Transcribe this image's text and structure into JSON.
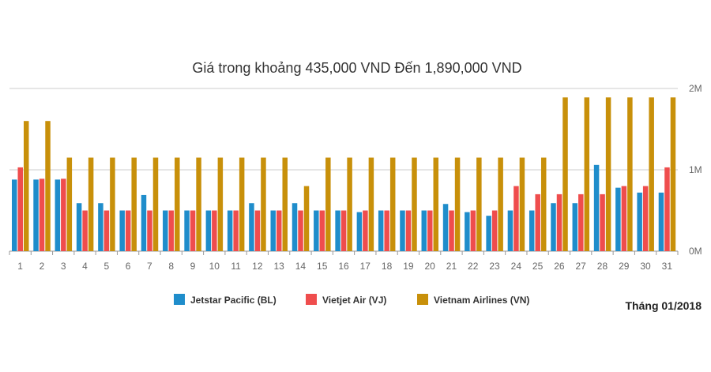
{
  "chart_data": {
    "type": "bar",
    "title": "Giá trong khoảng 435,000 VND Đến 1,890,000 VND",
    "categories": [
      "1",
      "2",
      "3",
      "4",
      "5",
      "6",
      "7",
      "8",
      "9",
      "10",
      "11",
      "12",
      "13",
      "14",
      "15",
      "16",
      "17",
      "18",
      "19",
      "20",
      "21",
      "22",
      "23",
      "24",
      "25",
      "26",
      "27",
      "28",
      "29",
      "30",
      "31"
    ],
    "series": [
      {
        "name": "Jetstar Pacific (BL)",
        "color": "#1f8dcb",
        "values": [
          880000,
          880000,
          880000,
          590000,
          590000,
          500000,
          690000,
          500000,
          500000,
          500000,
          500000,
          590000,
          500000,
          590000,
          500000,
          500000,
          480000,
          500000,
          500000,
          500000,
          580000,
          480000,
          435000,
          500000,
          500000,
          590000,
          590000,
          1060000,
          780000,
          720000,
          720000
        ]
      },
      {
        "name": "Vietjet Air (VJ)",
        "color": "#ef4d4d",
        "values": [
          1030000,
          890000,
          890000,
          500000,
          500000,
          500000,
          500000,
          500000,
          500000,
          500000,
          500000,
          500000,
          500000,
          500000,
          500000,
          500000,
          500000,
          500000,
          500000,
          500000,
          500000,
          500000,
          500000,
          800000,
          700000,
          700000,
          700000,
          700000,
          800000,
          800000,
          1030000
        ]
      },
      {
        "name": "Vietnam Airlines (VN)",
        "color": "#c8900a",
        "values": [
          1600000,
          1600000,
          1150000,
          1150000,
          1150000,
          1150000,
          1150000,
          1150000,
          1150000,
          1150000,
          1150000,
          1150000,
          1150000,
          800000,
          1150000,
          1150000,
          1150000,
          1150000,
          1150000,
          1150000,
          1150000,
          1150000,
          1150000,
          1150000,
          1150000,
          1890000,
          1890000,
          1890000,
          1890000,
          1890000,
          1890000
        ]
      }
    ],
    "y_ticks": [
      "0M",
      "1M",
      "2M"
    ],
    "ylim": [
      0,
      2000000
    ],
    "grid": true,
    "legend_position": "bottom"
  },
  "annotation": "Tháng 01/2018"
}
